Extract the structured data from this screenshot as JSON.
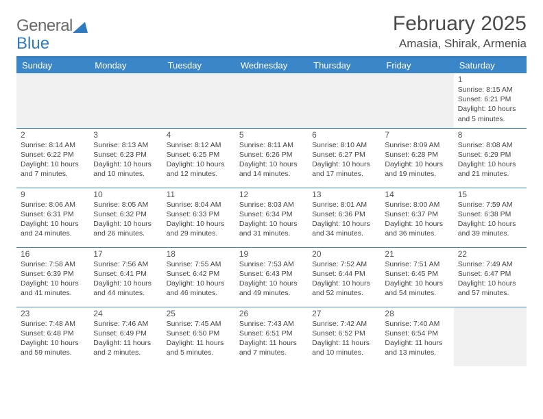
{
  "brand": {
    "name_a": "General",
    "name_b": "Blue"
  },
  "title": "February 2025",
  "location": "Amasia, Shirak, Armenia",
  "colors": {
    "header_bar": "#3a86c8",
    "accent_line": "#2f7ac0",
    "blank_bg": "#f0f0f0",
    "text": "#3a3a3a"
  },
  "day_headers": [
    "Sunday",
    "Monday",
    "Tuesday",
    "Wednesday",
    "Thursday",
    "Friday",
    "Saturday"
  ],
  "weeks": [
    [
      {
        "blank": true
      },
      {
        "blank": true
      },
      {
        "blank": true
      },
      {
        "blank": true
      },
      {
        "blank": true
      },
      {
        "blank": true
      },
      {
        "day": "1",
        "sunrise": "Sunrise: 8:15 AM",
        "sunset": "Sunset: 6:21 PM",
        "daylight": "Daylight: 10 hours and 5 minutes."
      }
    ],
    [
      {
        "day": "2",
        "sunrise": "Sunrise: 8:14 AM",
        "sunset": "Sunset: 6:22 PM",
        "daylight": "Daylight: 10 hours and 7 minutes."
      },
      {
        "day": "3",
        "sunrise": "Sunrise: 8:13 AM",
        "sunset": "Sunset: 6:23 PM",
        "daylight": "Daylight: 10 hours and 10 minutes."
      },
      {
        "day": "4",
        "sunrise": "Sunrise: 8:12 AM",
        "sunset": "Sunset: 6:25 PM",
        "daylight": "Daylight: 10 hours and 12 minutes."
      },
      {
        "day": "5",
        "sunrise": "Sunrise: 8:11 AM",
        "sunset": "Sunset: 6:26 PM",
        "daylight": "Daylight: 10 hours and 14 minutes."
      },
      {
        "day": "6",
        "sunrise": "Sunrise: 8:10 AM",
        "sunset": "Sunset: 6:27 PM",
        "daylight": "Daylight: 10 hours and 17 minutes."
      },
      {
        "day": "7",
        "sunrise": "Sunrise: 8:09 AM",
        "sunset": "Sunset: 6:28 PM",
        "daylight": "Daylight: 10 hours and 19 minutes."
      },
      {
        "day": "8",
        "sunrise": "Sunrise: 8:08 AM",
        "sunset": "Sunset: 6:29 PM",
        "daylight": "Daylight: 10 hours and 21 minutes."
      }
    ],
    [
      {
        "day": "9",
        "sunrise": "Sunrise: 8:06 AM",
        "sunset": "Sunset: 6:31 PM",
        "daylight": "Daylight: 10 hours and 24 minutes."
      },
      {
        "day": "10",
        "sunrise": "Sunrise: 8:05 AM",
        "sunset": "Sunset: 6:32 PM",
        "daylight": "Daylight: 10 hours and 26 minutes."
      },
      {
        "day": "11",
        "sunrise": "Sunrise: 8:04 AM",
        "sunset": "Sunset: 6:33 PM",
        "daylight": "Daylight: 10 hours and 29 minutes."
      },
      {
        "day": "12",
        "sunrise": "Sunrise: 8:03 AM",
        "sunset": "Sunset: 6:34 PM",
        "daylight": "Daylight: 10 hours and 31 minutes."
      },
      {
        "day": "13",
        "sunrise": "Sunrise: 8:01 AM",
        "sunset": "Sunset: 6:36 PM",
        "daylight": "Daylight: 10 hours and 34 minutes."
      },
      {
        "day": "14",
        "sunrise": "Sunrise: 8:00 AM",
        "sunset": "Sunset: 6:37 PM",
        "daylight": "Daylight: 10 hours and 36 minutes."
      },
      {
        "day": "15",
        "sunrise": "Sunrise: 7:59 AM",
        "sunset": "Sunset: 6:38 PM",
        "daylight": "Daylight: 10 hours and 39 minutes."
      }
    ],
    [
      {
        "day": "16",
        "sunrise": "Sunrise: 7:58 AM",
        "sunset": "Sunset: 6:39 PM",
        "daylight": "Daylight: 10 hours and 41 minutes."
      },
      {
        "day": "17",
        "sunrise": "Sunrise: 7:56 AM",
        "sunset": "Sunset: 6:41 PM",
        "daylight": "Daylight: 10 hours and 44 minutes."
      },
      {
        "day": "18",
        "sunrise": "Sunrise: 7:55 AM",
        "sunset": "Sunset: 6:42 PM",
        "daylight": "Daylight: 10 hours and 46 minutes."
      },
      {
        "day": "19",
        "sunrise": "Sunrise: 7:53 AM",
        "sunset": "Sunset: 6:43 PM",
        "daylight": "Daylight: 10 hours and 49 minutes."
      },
      {
        "day": "20",
        "sunrise": "Sunrise: 7:52 AM",
        "sunset": "Sunset: 6:44 PM",
        "daylight": "Daylight: 10 hours and 52 minutes."
      },
      {
        "day": "21",
        "sunrise": "Sunrise: 7:51 AM",
        "sunset": "Sunset: 6:45 PM",
        "daylight": "Daylight: 10 hours and 54 minutes."
      },
      {
        "day": "22",
        "sunrise": "Sunrise: 7:49 AM",
        "sunset": "Sunset: 6:47 PM",
        "daylight": "Daylight: 10 hours and 57 minutes."
      }
    ],
    [
      {
        "day": "23",
        "sunrise": "Sunrise: 7:48 AM",
        "sunset": "Sunset: 6:48 PM",
        "daylight": "Daylight: 10 hours and 59 minutes."
      },
      {
        "day": "24",
        "sunrise": "Sunrise: 7:46 AM",
        "sunset": "Sunset: 6:49 PM",
        "daylight": "Daylight: 11 hours and 2 minutes."
      },
      {
        "day": "25",
        "sunrise": "Sunrise: 7:45 AM",
        "sunset": "Sunset: 6:50 PM",
        "daylight": "Daylight: 11 hours and 5 minutes."
      },
      {
        "day": "26",
        "sunrise": "Sunrise: 7:43 AM",
        "sunset": "Sunset: 6:51 PM",
        "daylight": "Daylight: 11 hours and 7 minutes."
      },
      {
        "day": "27",
        "sunrise": "Sunrise: 7:42 AM",
        "sunset": "Sunset: 6:52 PM",
        "daylight": "Daylight: 11 hours and 10 minutes."
      },
      {
        "day": "28",
        "sunrise": "Sunrise: 7:40 AM",
        "sunset": "Sunset: 6:54 PM",
        "daylight": "Daylight: 11 hours and 13 minutes."
      },
      {
        "blank": true
      }
    ]
  ]
}
